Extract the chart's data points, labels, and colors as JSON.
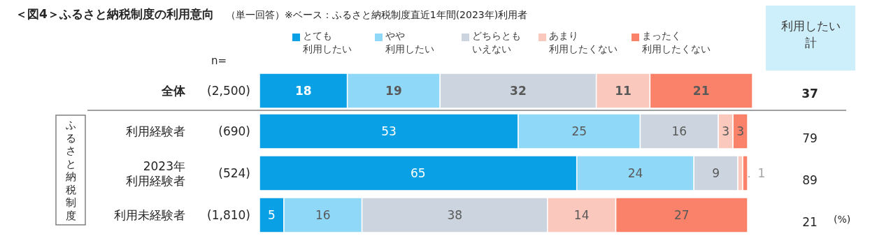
{
  "chart_data": [
    {
      "type": "bar",
      "orientation": "horizontal",
      "stacked": true,
      "data_labels": true,
      "legend": "top",
      "title": "＜図4＞ふるさと納税制度の利用意向",
      "subtitle": "（単一回答）※ベース：ふるさと納税制度直近1年間(2023年)利用者",
      "categories": [
        "全体",
        "利用経験者",
        "2023年利用経験者",
        "利用未経験者"
      ],
      "series": [
        {
          "name": "とても利用したい",
          "color": "#0aa0e6",
          "values": [
            18,
            53,
            65,
            5
          ]
        },
        {
          "name": "やや利用したい",
          "color": "#8fd8f8",
          "values": [
            19,
            25,
            24,
            16
          ]
        },
        {
          "name": "どちらともいえない",
          "color": "#ccd5df",
          "values": [
            32,
            16,
            9,
            38
          ]
        },
        {
          "name": "あまり利用したくない",
          "color": "#fac8bd",
          "values": [
            11,
            3,
            1,
            14
          ]
        },
        {
          "name": "まったく利用したくない",
          "color": "#fa826a",
          "values": [
            21,
            3,
            1,
            27
          ]
        }
      ],
      "annotations": [
        "ふるさと納税制度",
        "(%)"
      ]
    },
    {
      "type": "other",
      "title": "n=",
      "categories": [
        "(2,500)",
        "(690)",
        "(524)",
        "(1,810)"
      ]
    },
    {
      "type": "other",
      "title": "利用したい計",
      "values": [
        37,
        79,
        89,
        21
      ],
      "data_labels": true
    }
  ]
}
